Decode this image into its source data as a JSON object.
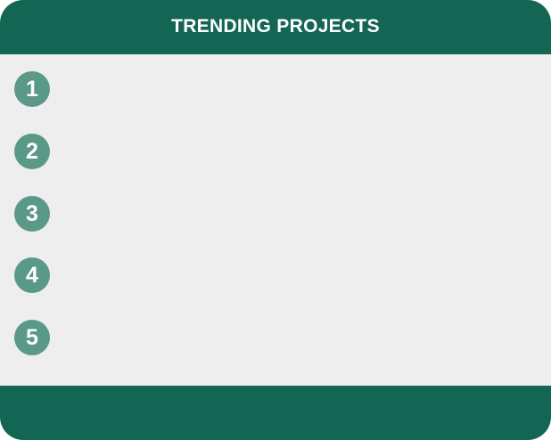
{
  "header": {
    "title": "TRENDING PROJECTS"
  },
  "projects": [
    {
      "rank": "1",
      "title": ""
    },
    {
      "rank": "2",
      "title": ""
    },
    {
      "rank": "3",
      "title": ""
    },
    {
      "rank": "4",
      "title": ""
    },
    {
      "rank": "5",
      "title": ""
    }
  ],
  "colors": {
    "header_bg": "#136654",
    "badge_bg": "#5a9988",
    "body_bg": "#eeeeee"
  }
}
